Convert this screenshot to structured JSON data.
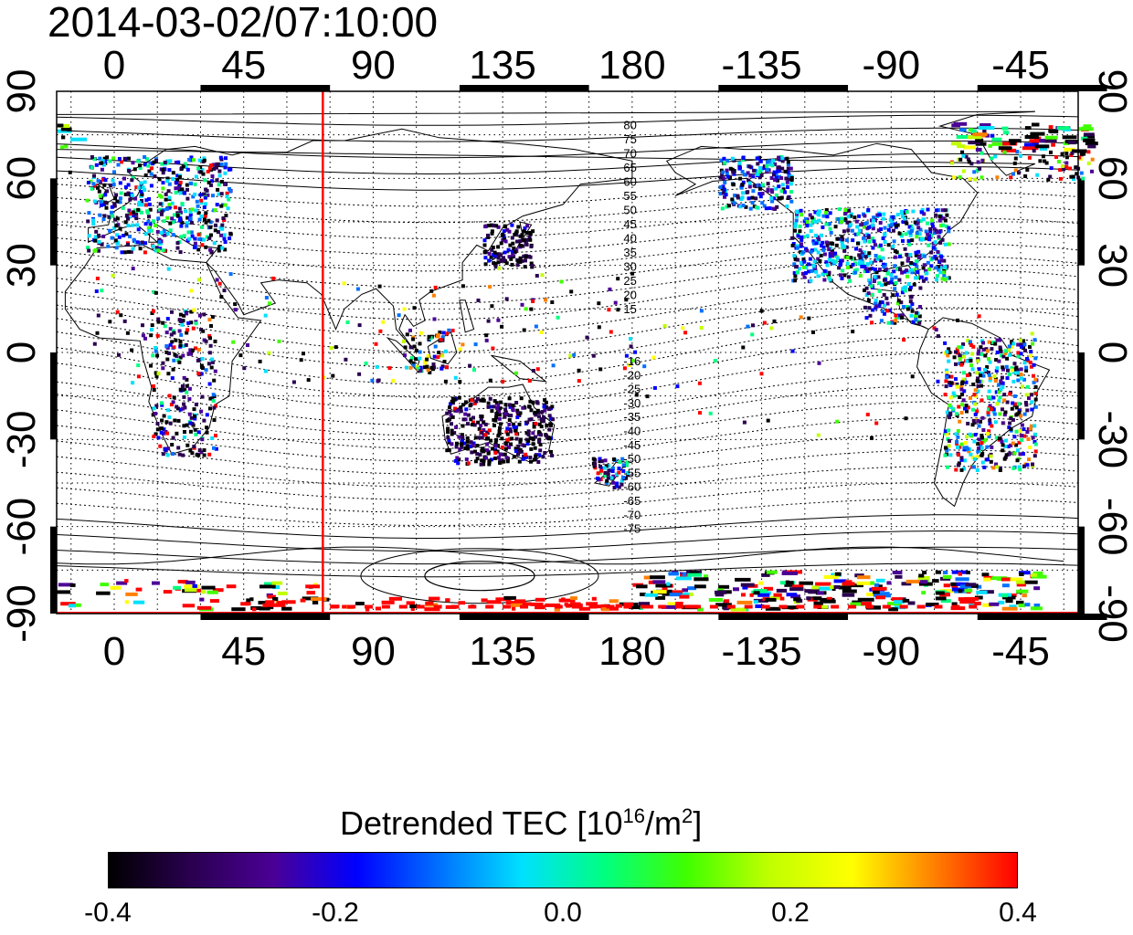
{
  "timestamp": "2014-03-02/07:10:00",
  "map": {
    "lon_ticks_top": [
      "0",
      "45",
      "90",
      "135",
      "180",
      "-135",
      "-90",
      "-45"
    ],
    "lon_ticks_bottom": [
      "0",
      "45",
      "90",
      "135",
      "180",
      "-135",
      "-90",
      "-45"
    ],
    "lat_ticks_left": [
      "90",
      "60",
      "30",
      "0",
      "-30",
      "-60",
      "-90"
    ],
    "lat_ticks_right": [
      "90",
      "60",
      "30",
      "0",
      "-30",
      "-60",
      "-90"
    ],
    "lon_range": [
      -20,
      335
    ],
    "lat_range": [
      -90,
      90
    ],
    "grid": true,
    "contour_labels_north": [
      "80",
      "75",
      "70",
      "65",
      "60",
      "55",
      "50",
      "45",
      "40",
      "35",
      "30",
      "25",
      "20",
      "15"
    ],
    "contour_labels_south": [
      "-16",
      "-20",
      "-25",
      "-30",
      "-35",
      "-40",
      "-45",
      "-50",
      "-55",
      "-60",
      "-65",
      "-70",
      "-75"
    ],
    "terminator_longitude": 72.5,
    "terminator_color": "#ff0000"
  },
  "colorbar": {
    "title_main": "Detrended TEC  [10",
    "title_exp1": "16",
    "title_mid": "/m",
    "title_exp2": "2",
    "title_end": "]",
    "ticks": [
      "-0.4",
      "-0.2",
      "0.0",
      "0.2",
      "0.4"
    ],
    "range": [
      -0.4,
      0.4
    ],
    "colors": [
      "#000000",
      "#2a0050",
      "#4b0096",
      "#0000ff",
      "#0070ff",
      "#00e0ff",
      "#00ff80",
      "#40ff00",
      "#c0ff00",
      "#ffff00",
      "#ff8000",
      "#ff0000"
    ]
  }
}
